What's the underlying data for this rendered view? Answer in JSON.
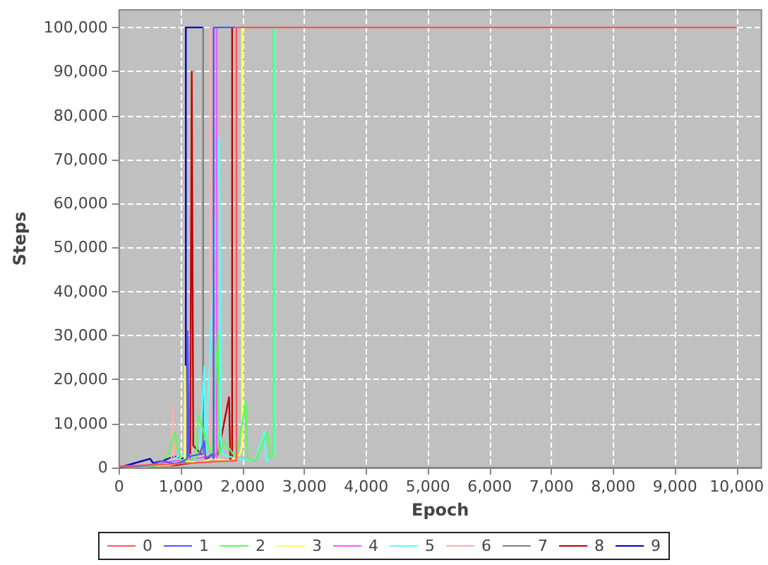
{
  "chart_data": {
    "type": "line",
    "xlabel": "Epoch",
    "ylabel": "Steps",
    "xlim": [
      0,
      10400
    ],
    "ylim": [
      0,
      104000
    ],
    "xticks": [
      0,
      {
        "value": 1000,
        "label": "1,000"
      },
      {
        "value": 2000,
        "label": "2,000"
      },
      {
        "value": 3000,
        "label": "3,000"
      },
      {
        "value": 4000,
        "label": "4,000"
      },
      {
        "value": 5000,
        "label": "5,000"
      },
      {
        "value": 6000,
        "label": "6,000"
      },
      {
        "value": 7000,
        "label": "7,000"
      },
      {
        "value": 8000,
        "label": "8,000"
      },
      {
        "value": 9000,
        "label": "9,000"
      },
      {
        "value": 10000,
        "label": "10,000"
      }
    ],
    "yticks": [
      0,
      {
        "value": 10000,
        "label": "10,000"
      },
      {
        "value": 20000,
        "label": "20,000"
      },
      {
        "value": 30000,
        "label": "30,000"
      },
      {
        "value": 40000,
        "label": "40,000"
      },
      {
        "value": 50000,
        "label": "50,000"
      },
      {
        "value": 60000,
        "label": "60,000"
      },
      {
        "value": 70000,
        "label": "70,000"
      },
      {
        "value": 80000,
        "label": "80,000"
      },
      {
        "value": 90000,
        "label": "90,000"
      },
      {
        "value": 100000,
        "label": "100,000"
      }
    ],
    "grid": true,
    "legend": "bottom",
    "marker": "none",
    "line_style": "solid",
    "series": [
      {
        "name": "0",
        "color": "#ff5555",
        "x": [
          0,
          200,
          400,
          600,
          800,
          1000,
          1200,
          1400,
          1600,
          1800,
          1900,
          1900,
          10000
        ],
        "values": [
          300,
          400,
          500,
          600,
          700,
          900,
          1000,
          1200,
          1400,
          1500,
          1600,
          100000,
          100000
        ]
      },
      {
        "name": "1",
        "color": "#5555ff",
        "x": [
          0,
          500,
          700,
          900,
          1000,
          1100,
          1110,
          1130,
          1300,
          1380,
          1400,
          1500,
          1530,
          1530,
          1880
        ],
        "values": [
          0,
          500,
          1500,
          800,
          1200,
          2000,
          31000,
          2500,
          3000,
          6000,
          2000,
          3000,
          2000,
          100000,
          100000
        ]
      },
      {
        "name": "2",
        "color": "#55ff55",
        "x": [
          0,
          600,
          800,
          900,
          1000,
          1250,
          1280,
          1500,
          1600,
          1620,
          1700,
          1900,
          2050,
          2080,
          2200,
          2400,
          2450,
          2500,
          2500
        ],
        "values": [
          0,
          400,
          3000,
          8000,
          1500,
          2000,
          12000,
          2500,
          31000,
          3000,
          6000,
          2000,
          15000,
          2000,
          1500,
          8000,
          2000,
          3000,
          100000
        ]
      },
      {
        "name": "3",
        "color": "#ffff55",
        "x": [
          0,
          800,
          1000,
          1060,
          1070,
          1080,
          1300,
          1500,
          1800,
          1960,
          1990,
          1990
        ],
        "values": [
          0,
          500,
          1000,
          2000,
          23000,
          1500,
          1000,
          2000,
          1500,
          3000,
          5000,
          100000
        ]
      },
      {
        "name": "4",
        "color": "#ff55ff",
        "x": [
          0,
          600,
          900,
          1200,
          1500,
          1560,
          1580,
          1580
        ],
        "values": [
          0,
          800,
          1500,
          2000,
          2500,
          3000,
          2000,
          100000
        ]
      },
      {
        "name": "5",
        "color": "#55ffff",
        "x": [
          0,
          800,
          1000,
          1300,
          1380,
          1400,
          1620,
          1650,
          1680,
          1900,
          2200,
          2350,
          2380,
          2450,
          2520,
          2520
        ],
        "values": [
          0,
          1000,
          3000,
          2000,
          23000,
          2000,
          75000,
          5000,
          3000,
          2000,
          1500,
          8000,
          1500,
          2000,
          3000,
          100000
        ]
      },
      {
        "name": "6",
        "color": "#ffafaf",
        "x": [
          0,
          700,
          850,
          870,
          890,
          1100,
          1300,
          1475,
          1475
        ],
        "values": [
          0,
          1000,
          2000,
          14000,
          1500,
          3000,
          2500,
          3000,
          100000
        ]
      },
      {
        "name": "7",
        "color": "#808080",
        "x": [
          0,
          800,
          1000,
          1200,
          1360,
          1360
        ],
        "values": [
          0,
          500,
          1000,
          2000,
          3000,
          100000
        ]
      },
      {
        "name": "8",
        "color": "#c00000",
        "x": [
          0,
          900,
          1150,
          1176,
          1200,
          1400,
          1600,
          1780,
          1800,
          1820,
          1830,
          1830
        ],
        "values": [
          0,
          500,
          1000,
          90000,
          5000,
          2000,
          3000,
          16000,
          2000,
          1500,
          2000,
          100000
        ]
      },
      {
        "name": "9",
        "color": "#0000c0",
        "x": [
          0,
          500,
          550,
          700,
          900,
          1050,
          1080,
          1080,
          1360
        ],
        "values": [
          0,
          2000,
          1000,
          1500,
          2500,
          2000,
          3000,
          100000,
          100000
        ]
      }
    ]
  }
}
